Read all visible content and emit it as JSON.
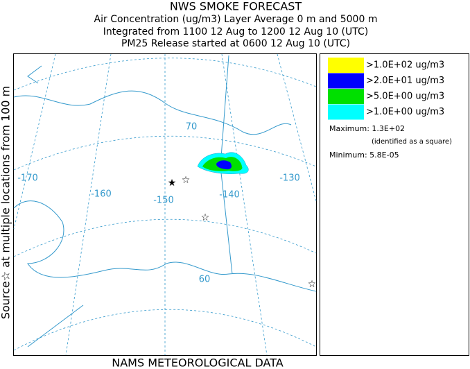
{
  "header": {
    "title": "NWS SMOKE FORECAST",
    "lines": [
      "Air Concentration (ug/m3) Layer Average    0 m and  5000 m",
      "Integrated from 1100 12 Aug to 1200 12 Aug 10 (UTC)",
      "PM25 Release started at 0600 12 Aug 10 (UTC)"
    ]
  },
  "side_label": "Source☆ at multiple locations from  100 m",
  "footer": "NAMS METEOROLOGICAL DATA",
  "legend": {
    "items": [
      {
        "label": ">1.0E+02 ug/m3",
        "color": "#ffff00"
      },
      {
        "label": ">2.0E+01 ug/m3",
        "color": "#0000ff"
      },
      {
        "label": ">5.0E+00 ug/m3",
        "color": "#00e000"
      },
      {
        "label": ">1.0E+00 ug/m3",
        "color": "#00ffff"
      }
    ],
    "maximum": "Maximum: 1.3E+02",
    "max_note": "(identified as a square)",
    "minimum": "Minimum: 5.8E-05"
  },
  "map": {
    "labels": [
      "-170",
      "-160",
      "-150",
      "-140",
      "-130",
      "70",
      "60"
    ]
  }
}
